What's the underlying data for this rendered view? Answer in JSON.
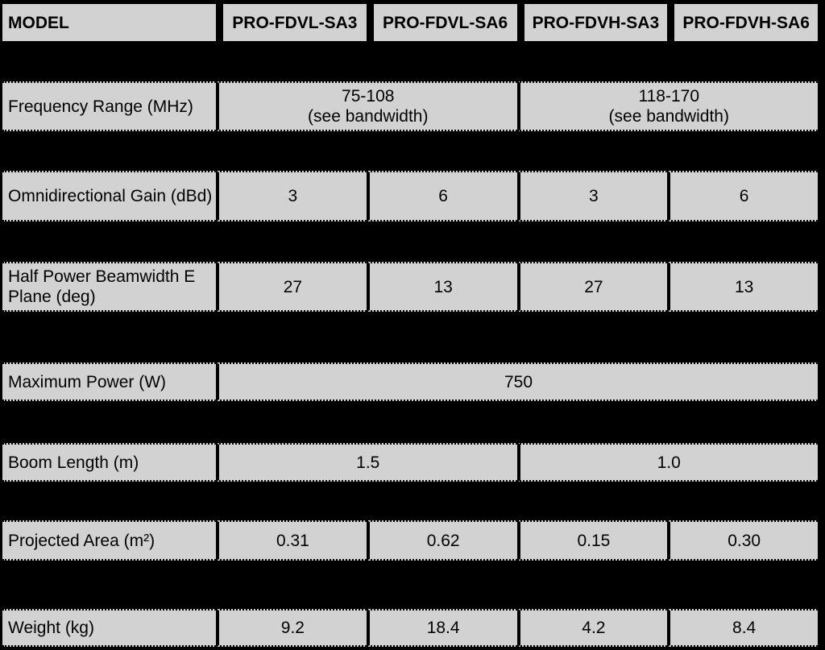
{
  "colors": {
    "page_bg": "#000000",
    "cell_bg": "#d2d2d2",
    "text": "#000000"
  },
  "table": {
    "header": {
      "label": "MODEL",
      "columns": [
        "PRO-FDVL-SA3",
        "PRO-FDVL-SA6",
        "PRO-FDVH-SA3",
        "PRO-FDVH-SA6"
      ]
    },
    "rows": [
      {
        "label": "Frequency Range (MHz)",
        "cells": [
          {
            "value": "75-108",
            "note": "(see bandwidth)",
            "span": 2
          },
          {
            "value": "118-170",
            "note": "(see bandwidth)",
            "span": 2
          }
        ]
      },
      {
        "label": "Omnidirectional Gain (dBd)",
        "cells": [
          {
            "value": "3"
          },
          {
            "value": "6"
          },
          {
            "value": "3"
          },
          {
            "value": "6"
          }
        ]
      },
      {
        "label": "Half Power Beamwidth E Plane (deg)",
        "cells": [
          {
            "value": "27"
          },
          {
            "value": "13"
          },
          {
            "value": "27"
          },
          {
            "value": "13"
          }
        ]
      },
      {
        "label": "Maximum Power (W)",
        "cells": [
          {
            "value": "750",
            "span": 4
          }
        ]
      },
      {
        "label": "Boom Length (m)",
        "cells": [
          {
            "value": "1.5",
            "span": 2
          },
          {
            "value": "1.0",
            "span": 2
          }
        ]
      },
      {
        "label": "Projected Area (m²)",
        "cells": [
          {
            "value": "0.31"
          },
          {
            "value": "0.62"
          },
          {
            "value": "0.15"
          },
          {
            "value": "0.30"
          }
        ]
      },
      {
        "label": "Weight (kg)",
        "cells": [
          {
            "value": "9.2"
          },
          {
            "value": "18.4"
          },
          {
            "value": "4.2"
          },
          {
            "value": "8.4"
          }
        ]
      }
    ]
  }
}
